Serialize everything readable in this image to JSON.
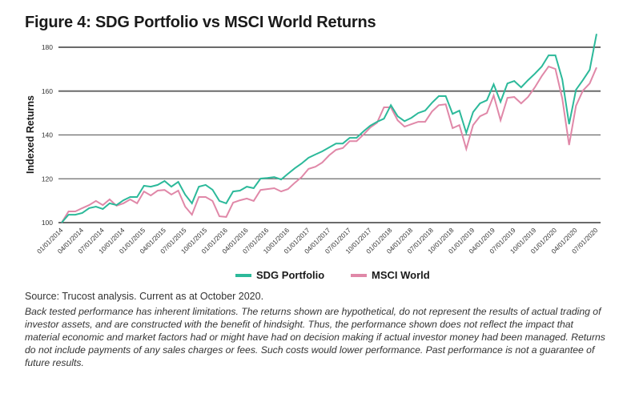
{
  "figure": {
    "title": "Figure 4: SDG Portfolio vs MSCI World Returns",
    "source": "Source: Trucost analysis. Current as at October 2020.",
    "disclaimer": "Back tested performance has inherent limitations. The returns shown are hypothetical, do not represent the results of actual trading of investor assets, and are constructed with the benefit of hindsight. Thus, the performance shown does not reflect the impact that material economic and market factors had or might have had on decision making if actual investor money had been managed. Returns do not include payments of any sales charges or fees. Such costs would lower performance. Past performance is not a guarantee of future results."
  },
  "chart_data": {
    "type": "line",
    "title": "Figure 4: SDG Portfolio vs MSCI World Returns",
    "xlabel": "",
    "ylabel": "Indexed Returns",
    "ylim": [
      100,
      180
    ],
    "yticks": [
      100,
      120,
      140,
      160,
      180
    ],
    "grid": "horizontal",
    "legend_position": "bottom-center",
    "x_tick_labels": [
      "01/01/2014",
      "04/01/2014",
      "07/01/2014",
      "10/01/2014",
      "01/01/2015",
      "04/01/2015",
      "07/01/2015",
      "10/01/2015",
      "01/01/2016",
      "04/01/2016",
      "07/01/2016",
      "10/01/2016",
      "01/01/2017",
      "04/01/2017",
      "07/01/2017",
      "10/01/2017",
      "01/01/2018",
      "04/01/2018",
      "07/01/2018",
      "10/01/2018",
      "01/01/2019",
      "04/01/2019",
      "07/01/2019",
      "10/01/2019",
      "01/01/2020",
      "04/01/2020",
      "07/01/2020"
    ],
    "x_frequency": "monthly",
    "x_start": "01/01/2014",
    "x_end": "07/01/2020",
    "series": [
      {
        "name": "SDG Portfolio",
        "color": "#2cb99a",
        "values": [
          100,
          103.6,
          103.6,
          104.4,
          106.6,
          107.3,
          106.2,
          108.8,
          108.0,
          110.2,
          111.7,
          111.7,
          116.8,
          116.4,
          117.2,
          119.0,
          116.4,
          118.6,
          112.8,
          108.8,
          116.4,
          117.2,
          115.0,
          109.9,
          108.8,
          114.2,
          114.6,
          116.4,
          115.7,
          120.1,
          120.4,
          120.8,
          119.7,
          122.3,
          124.8,
          127.0,
          129.6,
          131.1,
          132.5,
          134.3,
          136.1,
          136.1,
          138.7,
          138.7,
          141.6,
          144.2,
          146.0,
          147.4,
          153.6,
          148.5,
          146.3,
          147.8,
          150.0,
          151.1,
          154.7,
          157.7,
          157.7,
          149.6,
          151.1,
          140.9,
          150.4,
          154.4,
          155.8,
          163.1,
          155.1,
          163.5,
          164.6,
          161.7,
          165.0,
          167.9,
          171.2,
          176.3,
          176.3,
          165.3,
          144.9,
          160.6,
          165.0,
          169.7,
          186.1
        ]
      },
      {
        "name": "MSCI World",
        "color": "#e088a8",
        "values": [
          100,
          105.1,
          105.1,
          106.6,
          108.0,
          109.9,
          108.0,
          110.6,
          107.7,
          108.8,
          110.6,
          108.8,
          114.2,
          112.4,
          114.6,
          114.9,
          112.8,
          114.6,
          107.3,
          103.6,
          111.7,
          111.7,
          109.9,
          102.9,
          102.6,
          109.1,
          110.2,
          111.0,
          109.9,
          114.9,
          115.3,
          115.7,
          114.2,
          115.3,
          118.2,
          120.8,
          124.5,
          125.5,
          127.4,
          130.7,
          133.2,
          134.0,
          137.2,
          137.2,
          140.1,
          143.4,
          145.6,
          152.6,
          152.6,
          146.7,
          143.8,
          144.9,
          146.0,
          146.0,
          150.7,
          153.6,
          154.0,
          143.1,
          144.5,
          133.6,
          144.5,
          148.5,
          150.0,
          158.0,
          146.7,
          156.9,
          157.3,
          154.4,
          157.3,
          161.7,
          166.8,
          171.2,
          170.1,
          156.6,
          135.4,
          153.3,
          160.2,
          163.5,
          170.8
        ]
      }
    ]
  }
}
